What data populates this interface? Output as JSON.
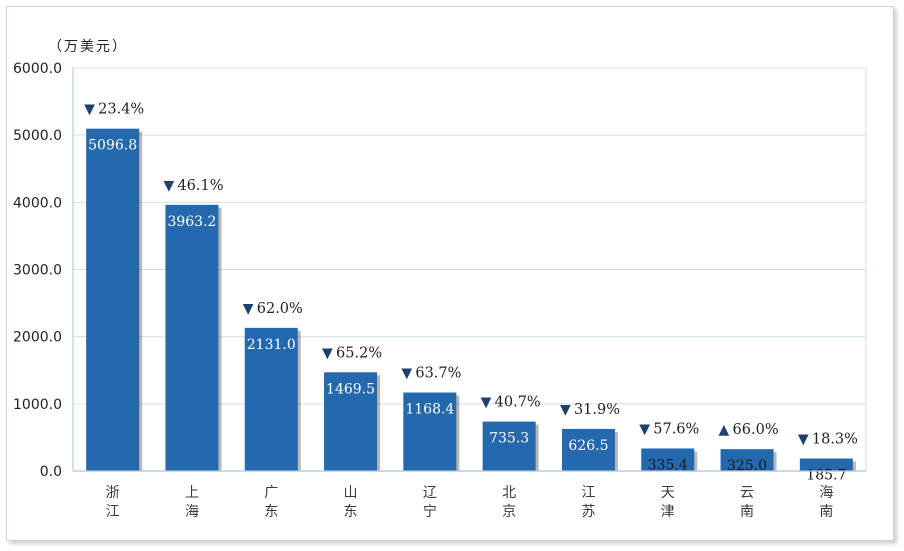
{
  "chart_data": {
    "type": "bar",
    "unit": "（万美元）",
    "categories": [
      "浙江",
      "上海",
      "广东",
      "山东",
      "辽宁",
      "北京",
      "江苏",
      "天津",
      "云南",
      "海南"
    ],
    "values": [
      5096.8,
      3963.2,
      2131.0,
      1469.5,
      1168.4,
      735.3,
      626.5,
      335.4,
      325.0,
      185.7
    ],
    "value_labels": [
      "5096.8",
      "3963.2",
      "2131.0",
      "1469.5",
      "1168.4",
      "735.3",
      "626.5",
      "335.4",
      "325.0",
      "185.7"
    ],
    "changes": [
      {
        "direction": "down",
        "symbol": "▼",
        "text": "23.4%"
      },
      {
        "direction": "down",
        "symbol": "▼",
        "text": "46.1%"
      },
      {
        "direction": "down",
        "symbol": "▼",
        "text": "62.0%"
      },
      {
        "direction": "down",
        "symbol": "▼",
        "text": "65.2%"
      },
      {
        "direction": "down",
        "symbol": "▼",
        "text": "63.7%"
      },
      {
        "direction": "down",
        "symbol": "▼",
        "text": "40.7%"
      },
      {
        "direction": "down",
        "symbol": "▼",
        "text": "31.9%"
      },
      {
        "direction": "down",
        "symbol": "▼",
        "text": "57.6%"
      },
      {
        "direction": "up",
        "symbol": "▲",
        "text": "66.0%"
      },
      {
        "direction": "down",
        "symbol": "▼",
        "text": "18.3%"
      }
    ],
    "yticks": [
      "0.0",
      "1000.0",
      "2000.0",
      "3000.0",
      "4000.0",
      "5000.0",
      "6000.0"
    ],
    "ylim": [
      0,
      6000
    ],
    "grid": true,
    "bar_color": "#2468ae",
    "grid_color": "#d5e0ec",
    "axis_color": "#a9c4e0"
  }
}
